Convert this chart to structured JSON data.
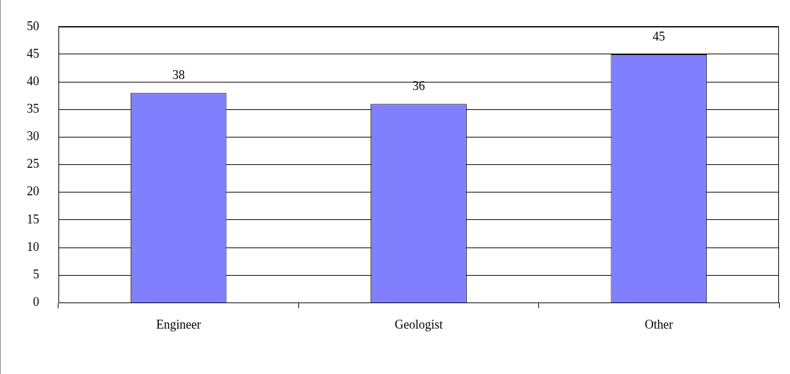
{
  "chart_data": {
    "type": "bar",
    "categories": [
      "Engineer",
      "Geologist",
      "Other"
    ],
    "values": [
      38,
      36,
      45
    ],
    "color": "#8080ff",
    "ylim": [
      0,
      50
    ],
    "yticks": [
      0,
      5,
      10,
      15,
      20,
      25,
      30,
      35,
      40,
      45,
      50
    ],
    "grid": "y",
    "data_labels": true,
    "legend": false
  }
}
